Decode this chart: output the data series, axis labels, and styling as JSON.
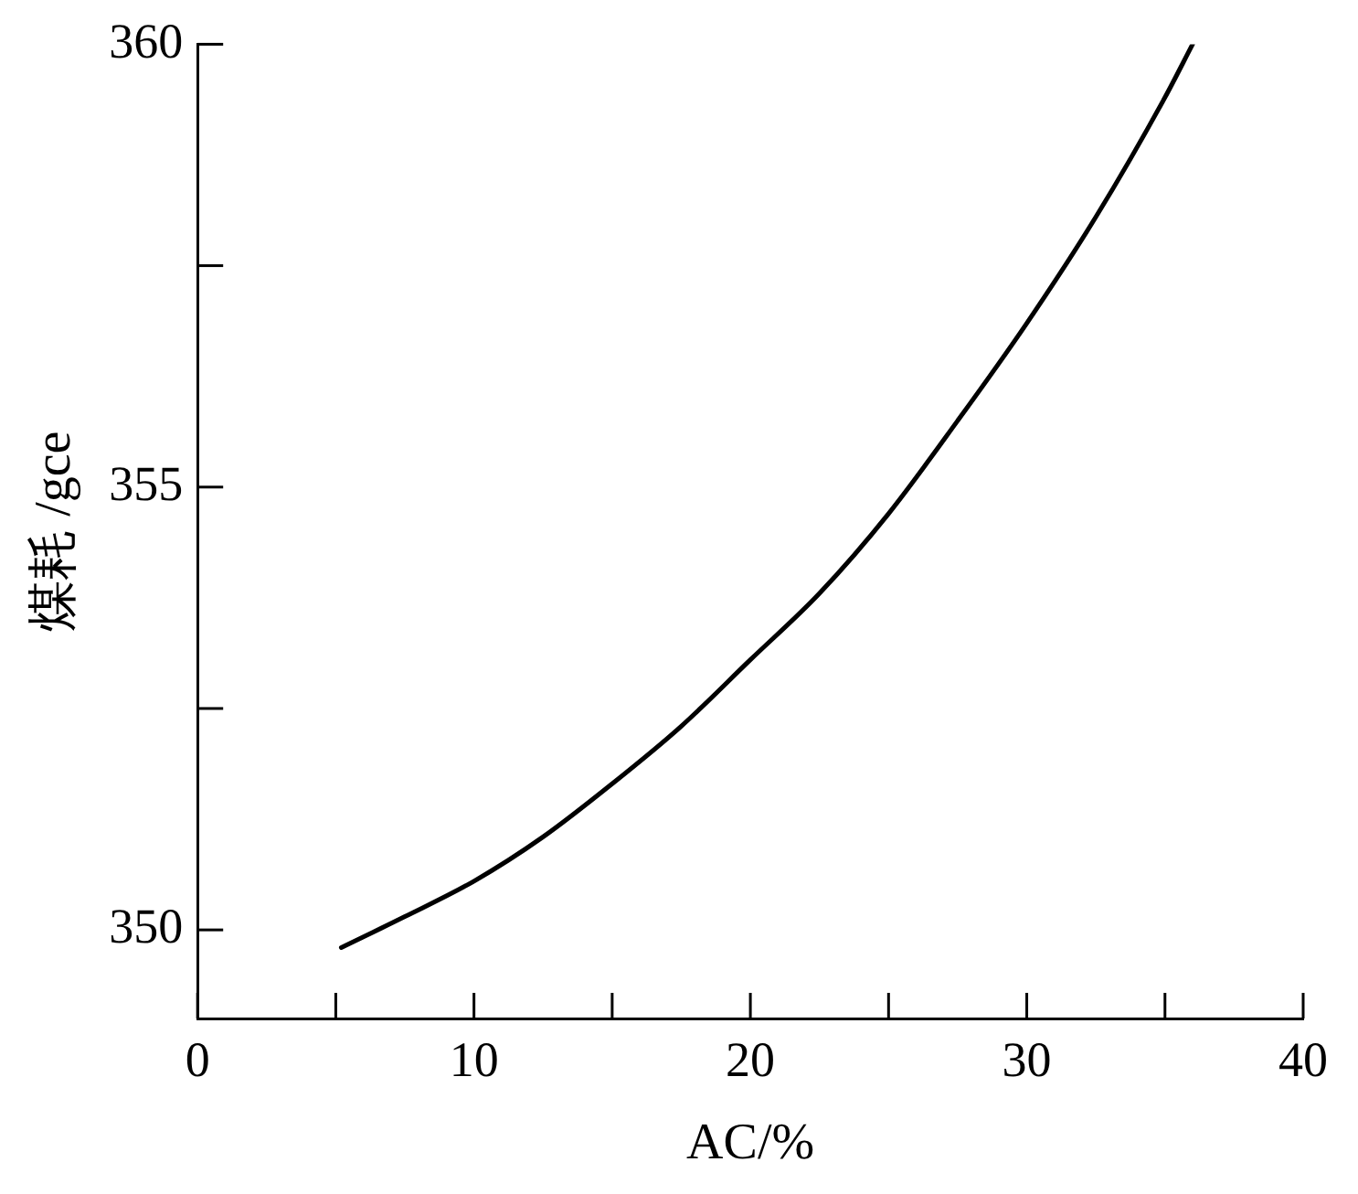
{
  "chart_data": {
    "type": "line",
    "xlabel": "AC/%",
    "ylabel": "煤耗 /gce",
    "x": [
      5.2,
      7.5,
      10,
      12.5,
      15,
      17.5,
      20,
      22.5,
      25,
      27.5,
      30,
      32.5,
      35,
      36
    ],
    "series": [
      {
        "color": "#000000",
        "values": [
          349.8,
          350.15,
          350.55,
          351.05,
          351.65,
          352.3,
          353.05,
          353.8,
          354.7,
          355.75,
          356.85,
          358.05,
          359.4,
          360
        ]
      }
    ],
    "xlim": [
      0,
      40
    ],
    "xticks": [
      0,
      {
        "value": 5,
        "label": null
      },
      10,
      {
        "value": 15,
        "label": null
      },
      20,
      {
        "value": 25,
        "label": null
      },
      30,
      {
        "value": 35,
        "label": null
      },
      40
    ],
    "ylim": [
      349,
      360
    ],
    "yticks": [
      350,
      {
        "value": 352.5,
        "label": null
      },
      355,
      {
        "value": 357.5,
        "label": null
      },
      360
    ],
    "grid": false,
    "legend": false,
    "marker": "none",
    "line_style": "solid"
  }
}
